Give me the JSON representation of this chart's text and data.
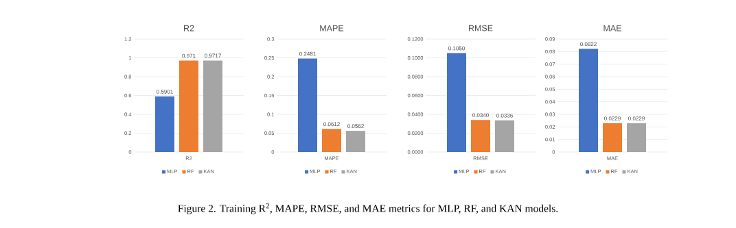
{
  "chart_data": [
    {
      "type": "bar",
      "title": "R2",
      "categories": [
        "R2"
      ],
      "ylim": [
        0,
        1.2
      ],
      "yticks": [
        0,
        0.2,
        0.4,
        0.6,
        0.8,
        1,
        1.2
      ],
      "grid": "y",
      "legend": "bottom",
      "series": [
        {
          "name": "MLP",
          "color": "#4472c4",
          "values": [
            0.5901
          ],
          "value_labels": [
            "0.5901"
          ]
        },
        {
          "name": "RF",
          "color": "#ed7d31",
          "values": [
            0.971
          ],
          "value_labels": [
            "0.971"
          ]
        },
        {
          "name": "KAN",
          "color": "#a5a5a5",
          "values": [
            0.9717
          ],
          "value_labels": [
            "0.9717"
          ]
        }
      ],
      "annotations": [
        "Figure 2. Training R$^{2}$, MAPE, RMSE, and MAE metrics for MLP, RF, and KAN models."
      ]
    },
    {
      "type": "bar",
      "title": "MAPE",
      "categories": [
        "MAPE"
      ],
      "ylim": [
        0,
        0.3
      ],
      "yticks": [
        0,
        0.05,
        0.1,
        0.15,
        0.2,
        0.25,
        0.3
      ],
      "grid": "y",
      "legend": "bottom",
      "series": [
        {
          "name": "MLP",
          "color": "#4472c4",
          "values": [
            0.2481
          ],
          "value_labels": [
            "0.2481"
          ]
        },
        {
          "name": "RF",
          "color": "#ed7d31",
          "values": [
            0.0612
          ],
          "value_labels": [
            "0.0612"
          ]
        },
        {
          "name": "KAN",
          "color": "#a5a5a5",
          "values": [
            0.0562
          ],
          "value_labels": [
            "0.0562"
          ]
        }
      ]
    },
    {
      "type": "bar",
      "title": "RMSE",
      "categories": [
        "RMSE"
      ],
      "ylim": [
        0,
        0.12
      ],
      "yticks": [
        {
          "value": 0,
          "label": "0.0000"
        },
        {
          "value": 0.02,
          "label": "0.0200"
        },
        {
          "value": 0.04,
          "label": "0.0400"
        },
        {
          "value": 0.06,
          "label": "0.0600"
        },
        {
          "value": 0.08,
          "label": "0.0800"
        },
        {
          "value": 0.1,
          "label": "0.1000"
        },
        {
          "value": 0.12,
          "label": "0.1200"
        }
      ],
      "grid": "y",
      "legend": "bottom",
      "series": [
        {
          "name": "MLP",
          "color": "#4472c4",
          "values": [
            0.105
          ],
          "value_labels": [
            "0.1050"
          ]
        },
        {
          "name": "RF",
          "color": "#ed7d31",
          "values": [
            0.034
          ],
          "value_labels": [
            "0.0340"
          ]
        },
        {
          "name": "KAN",
          "color": "#a5a5a5",
          "values": [
            0.0336
          ],
          "value_labels": [
            "0.0336"
          ]
        }
      ]
    },
    {
      "type": "bar",
      "title": "MAE",
      "categories": [
        "MAE"
      ],
      "ylim": [
        0,
        0.09
      ],
      "yticks": [
        0,
        0.01,
        0.02,
        0.03,
        0.04,
        0.05,
        0.06,
        0.07,
        0.08,
        0.09
      ],
      "grid": "y",
      "legend": "bottom",
      "series": [
        {
          "name": "MLP",
          "color": "#4472c4",
          "values": [
            0.0822
          ],
          "value_labels": [
            "0.0822"
          ]
        },
        {
          "name": "RF",
          "color": "#ed7d31",
          "values": [
            0.0229
          ],
          "value_labels": [
            "0.0229"
          ]
        },
        {
          "name": "KAN",
          "color": "#a5a5a5",
          "values": [
            0.0229
          ],
          "value_labels": [
            "0.0229"
          ]
        }
      ]
    }
  ]
}
